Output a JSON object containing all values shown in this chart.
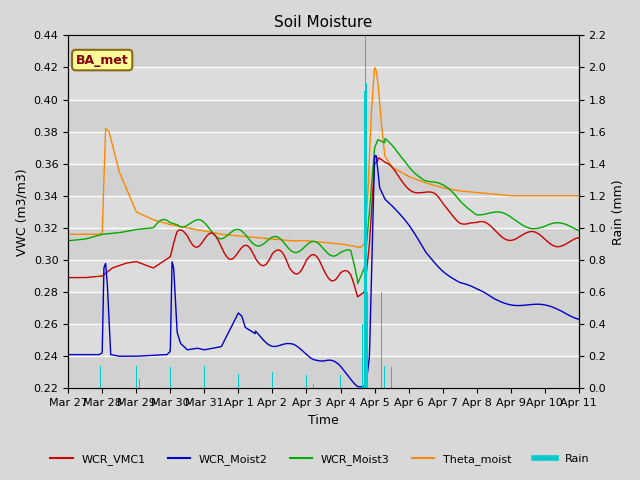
{
  "title": "Soil Moisture",
  "ylabel_left": "VWC (m3/m3)",
  "ylabel_right": "Rain (mm)",
  "xlabel": "Time",
  "ylim_left": [
    0.22,
    0.44
  ],
  "ylim_right": [
    0.0,
    2.2
  ],
  "background_color": "#d8d8d8",
  "plot_bg_color": "#d8d8d8",
  "grid_color": "white",
  "annotation_label": "BA_met",
  "annotation_color": "#8b0000",
  "annotation_bg": "#ffff99",
  "x_tick_labels": [
    "Mar 27",
    "Mar 28",
    "Mar 29",
    "Mar 30",
    "Mar 31",
    "Apr 1",
    "Apr 2",
    "Apr 3",
    "Apr 4",
    "Apr 5",
    "Apr 6",
    "Apr 7",
    "Apr 8",
    "Apr 9",
    "Apr 10",
    "Apr 11"
  ],
  "colors": {
    "WCR_VMC1": "#cc0000",
    "WCR_Moist2": "#0000cc",
    "WCR_Moist3": "#00aa00",
    "Theta_moist": "#ff8800",
    "Rain": "#00cccc"
  },
  "legend_entries": [
    "WCR_VMC1",
    "WCR_Moist2",
    "WCR_Moist3",
    "Theta_moist",
    "Rain"
  ]
}
